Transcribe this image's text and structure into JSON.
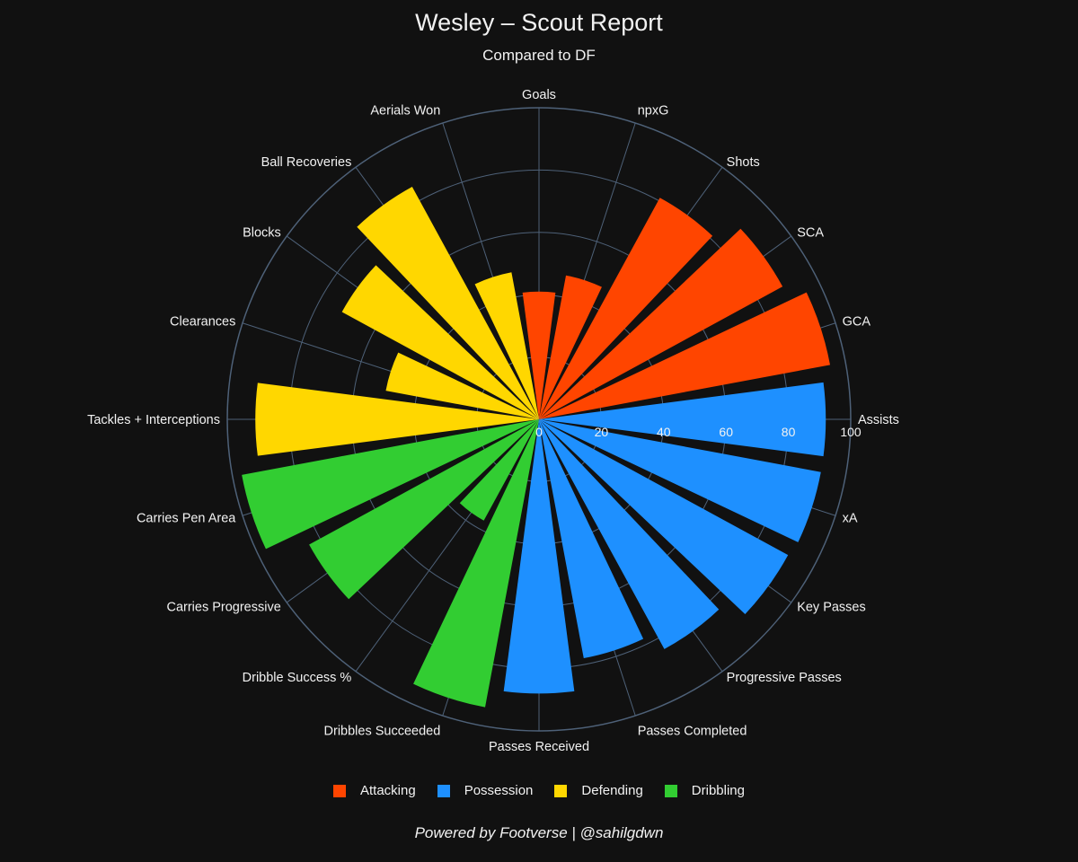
{
  "chart_data": {
    "type": "bar",
    "polar": true,
    "title": "Wesley – Scout Report",
    "subtitle": "Compared to DF",
    "radial_range": [
      0,
      100
    ],
    "radial_ticks": [
      "0",
      "20",
      "40",
      "60",
      "80",
      "100"
    ],
    "radial_tick_values": [
      0,
      20,
      40,
      60,
      80,
      100
    ],
    "categories": [
      "Goals",
      "npxG",
      "Shots",
      "SCA",
      "GCA",
      "Assists",
      "xA",
      "Key Passes",
      "Progressive Passes",
      "Passes Completed",
      "Passes Received",
      "Dribbles Succeeded",
      "Dribble Success %",
      "Carries Progressive",
      "Carries Pen Area",
      "Tackles + Interceptions",
      "Clearances",
      "Blocks",
      "Ball Recoveries",
      "Aerials Won"
    ],
    "values": [
      41,
      47,
      81,
      89,
      95,
      92,
      92,
      91,
      84,
      78,
      88,
      94,
      37,
      84,
      97,
      91,
      50,
      72,
      85,
      48
    ],
    "groups": [
      "Attacking",
      "Attacking",
      "Attacking",
      "Attacking",
      "Attacking",
      "Possession",
      "Possession",
      "Possession",
      "Possession",
      "Possession",
      "Possession",
      "Dribbling",
      "Dribbling",
      "Dribbling",
      "Dribbling",
      "Defending",
      "Defending",
      "Defending",
      "Defending",
      "Defending"
    ],
    "legend": [
      {
        "name": "Attacking",
        "color": "#ff4500"
      },
      {
        "name": "Possession",
        "color": "#1e90ff"
      },
      {
        "name": "Defending",
        "color": "#ffd700"
      },
      {
        "name": "Dribbling",
        "color": "#32cd32"
      }
    ],
    "legend_position": "bottom-center",
    "grid": true,
    "colors": {
      "background": "#111111",
      "grid": "#4e6178",
      "text": "#f2f2f2"
    }
  },
  "footer": "Powered by Footverse | @sahilgdwn"
}
